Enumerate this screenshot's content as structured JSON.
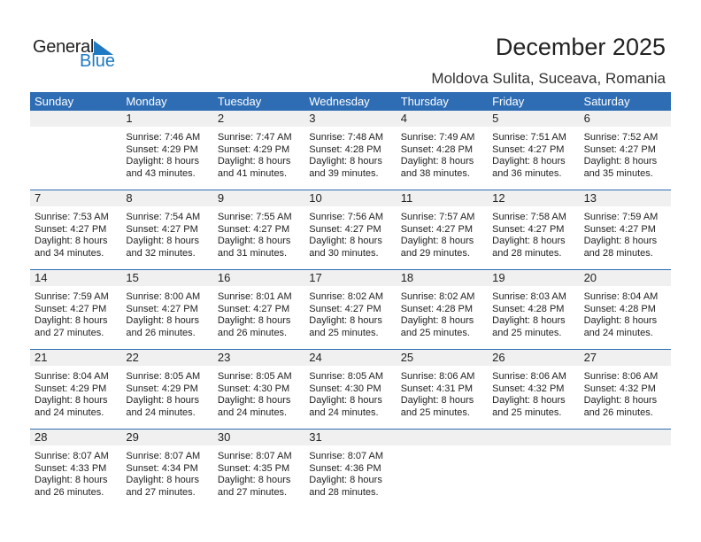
{
  "logo": {
    "general": "General",
    "blue": "Blue"
  },
  "title": "December 2025",
  "location": "Moldova Sulita, Suceava, Romania",
  "colors": {
    "header": "#2e6db4",
    "logo_blue": "#1f7ac2",
    "strip": "#f0f0f0"
  },
  "weekdays": [
    "Sunday",
    "Monday",
    "Tuesday",
    "Wednesday",
    "Thursday",
    "Friday",
    "Saturday"
  ],
  "first_weekday_index": 1,
  "days": [
    {
      "day": "1",
      "sunrise": "Sunrise: 7:46 AM",
      "sunset": "Sunset: 4:29 PM",
      "daylight1": "Daylight: 8 hours",
      "daylight2": "and 43 minutes."
    },
    {
      "day": "2",
      "sunrise": "Sunrise: 7:47 AM",
      "sunset": "Sunset: 4:29 PM",
      "daylight1": "Daylight: 8 hours",
      "daylight2": "and 41 minutes."
    },
    {
      "day": "3",
      "sunrise": "Sunrise: 7:48 AM",
      "sunset": "Sunset: 4:28 PM",
      "daylight1": "Daylight: 8 hours",
      "daylight2": "and 39 minutes."
    },
    {
      "day": "4",
      "sunrise": "Sunrise: 7:49 AM",
      "sunset": "Sunset: 4:28 PM",
      "daylight1": "Daylight: 8 hours",
      "daylight2": "and 38 minutes."
    },
    {
      "day": "5",
      "sunrise": "Sunrise: 7:51 AM",
      "sunset": "Sunset: 4:27 PM",
      "daylight1": "Daylight: 8 hours",
      "daylight2": "and 36 minutes."
    },
    {
      "day": "6",
      "sunrise": "Sunrise: 7:52 AM",
      "sunset": "Sunset: 4:27 PM",
      "daylight1": "Daylight: 8 hours",
      "daylight2": "and 35 minutes."
    },
    {
      "day": "7",
      "sunrise": "Sunrise: 7:53 AM",
      "sunset": "Sunset: 4:27 PM",
      "daylight1": "Daylight: 8 hours",
      "daylight2": "and 34 minutes."
    },
    {
      "day": "8",
      "sunrise": "Sunrise: 7:54 AM",
      "sunset": "Sunset: 4:27 PM",
      "daylight1": "Daylight: 8 hours",
      "daylight2": "and 32 minutes."
    },
    {
      "day": "9",
      "sunrise": "Sunrise: 7:55 AM",
      "sunset": "Sunset: 4:27 PM",
      "daylight1": "Daylight: 8 hours",
      "daylight2": "and 31 minutes."
    },
    {
      "day": "10",
      "sunrise": "Sunrise: 7:56 AM",
      "sunset": "Sunset: 4:27 PM",
      "daylight1": "Daylight: 8 hours",
      "daylight2": "and 30 minutes."
    },
    {
      "day": "11",
      "sunrise": "Sunrise: 7:57 AM",
      "sunset": "Sunset: 4:27 PM",
      "daylight1": "Daylight: 8 hours",
      "daylight2": "and 29 minutes."
    },
    {
      "day": "12",
      "sunrise": "Sunrise: 7:58 AM",
      "sunset": "Sunset: 4:27 PM",
      "daylight1": "Daylight: 8 hours",
      "daylight2": "and 28 minutes."
    },
    {
      "day": "13",
      "sunrise": "Sunrise: 7:59 AM",
      "sunset": "Sunset: 4:27 PM",
      "daylight1": "Daylight: 8 hours",
      "daylight2": "and 28 minutes."
    },
    {
      "day": "14",
      "sunrise": "Sunrise: 7:59 AM",
      "sunset": "Sunset: 4:27 PM",
      "daylight1": "Daylight: 8 hours",
      "daylight2": "and 27 minutes."
    },
    {
      "day": "15",
      "sunrise": "Sunrise: 8:00 AM",
      "sunset": "Sunset: 4:27 PM",
      "daylight1": "Daylight: 8 hours",
      "daylight2": "and 26 minutes."
    },
    {
      "day": "16",
      "sunrise": "Sunrise: 8:01 AM",
      "sunset": "Sunset: 4:27 PM",
      "daylight1": "Daylight: 8 hours",
      "daylight2": "and 26 minutes."
    },
    {
      "day": "17",
      "sunrise": "Sunrise: 8:02 AM",
      "sunset": "Sunset: 4:27 PM",
      "daylight1": "Daylight: 8 hours",
      "daylight2": "and 25 minutes."
    },
    {
      "day": "18",
      "sunrise": "Sunrise: 8:02 AM",
      "sunset": "Sunset: 4:28 PM",
      "daylight1": "Daylight: 8 hours",
      "daylight2": "and 25 minutes."
    },
    {
      "day": "19",
      "sunrise": "Sunrise: 8:03 AM",
      "sunset": "Sunset: 4:28 PM",
      "daylight1": "Daylight: 8 hours",
      "daylight2": "and 25 minutes."
    },
    {
      "day": "20",
      "sunrise": "Sunrise: 8:04 AM",
      "sunset": "Sunset: 4:28 PM",
      "daylight1": "Daylight: 8 hours",
      "daylight2": "and 24 minutes."
    },
    {
      "day": "21",
      "sunrise": "Sunrise: 8:04 AM",
      "sunset": "Sunset: 4:29 PM",
      "daylight1": "Daylight: 8 hours",
      "daylight2": "and 24 minutes."
    },
    {
      "day": "22",
      "sunrise": "Sunrise: 8:05 AM",
      "sunset": "Sunset: 4:29 PM",
      "daylight1": "Daylight: 8 hours",
      "daylight2": "and 24 minutes."
    },
    {
      "day": "23",
      "sunrise": "Sunrise: 8:05 AM",
      "sunset": "Sunset: 4:30 PM",
      "daylight1": "Daylight: 8 hours",
      "daylight2": "and 24 minutes."
    },
    {
      "day": "24",
      "sunrise": "Sunrise: 8:05 AM",
      "sunset": "Sunset: 4:30 PM",
      "daylight1": "Daylight: 8 hours",
      "daylight2": "and 24 minutes."
    },
    {
      "day": "25",
      "sunrise": "Sunrise: 8:06 AM",
      "sunset": "Sunset: 4:31 PM",
      "daylight1": "Daylight: 8 hours",
      "daylight2": "and 25 minutes."
    },
    {
      "day": "26",
      "sunrise": "Sunrise: 8:06 AM",
      "sunset": "Sunset: 4:32 PM",
      "daylight1": "Daylight: 8 hours",
      "daylight2": "and 25 minutes."
    },
    {
      "day": "27",
      "sunrise": "Sunrise: 8:06 AM",
      "sunset": "Sunset: 4:32 PM",
      "daylight1": "Daylight: 8 hours",
      "daylight2": "and 26 minutes."
    },
    {
      "day": "28",
      "sunrise": "Sunrise: 8:07 AM",
      "sunset": "Sunset: 4:33 PM",
      "daylight1": "Daylight: 8 hours",
      "daylight2": "and 26 minutes."
    },
    {
      "day": "29",
      "sunrise": "Sunrise: 8:07 AM",
      "sunset": "Sunset: 4:34 PM",
      "daylight1": "Daylight: 8 hours",
      "daylight2": "and 27 minutes."
    },
    {
      "day": "30",
      "sunrise": "Sunrise: 8:07 AM",
      "sunset": "Sunset: 4:35 PM",
      "daylight1": "Daylight: 8 hours",
      "daylight2": "and 27 minutes."
    },
    {
      "day": "31",
      "sunrise": "Sunrise: 8:07 AM",
      "sunset": "Sunset: 4:36 PM",
      "daylight1": "Daylight: 8 hours",
      "daylight2": "and 28 minutes."
    }
  ]
}
